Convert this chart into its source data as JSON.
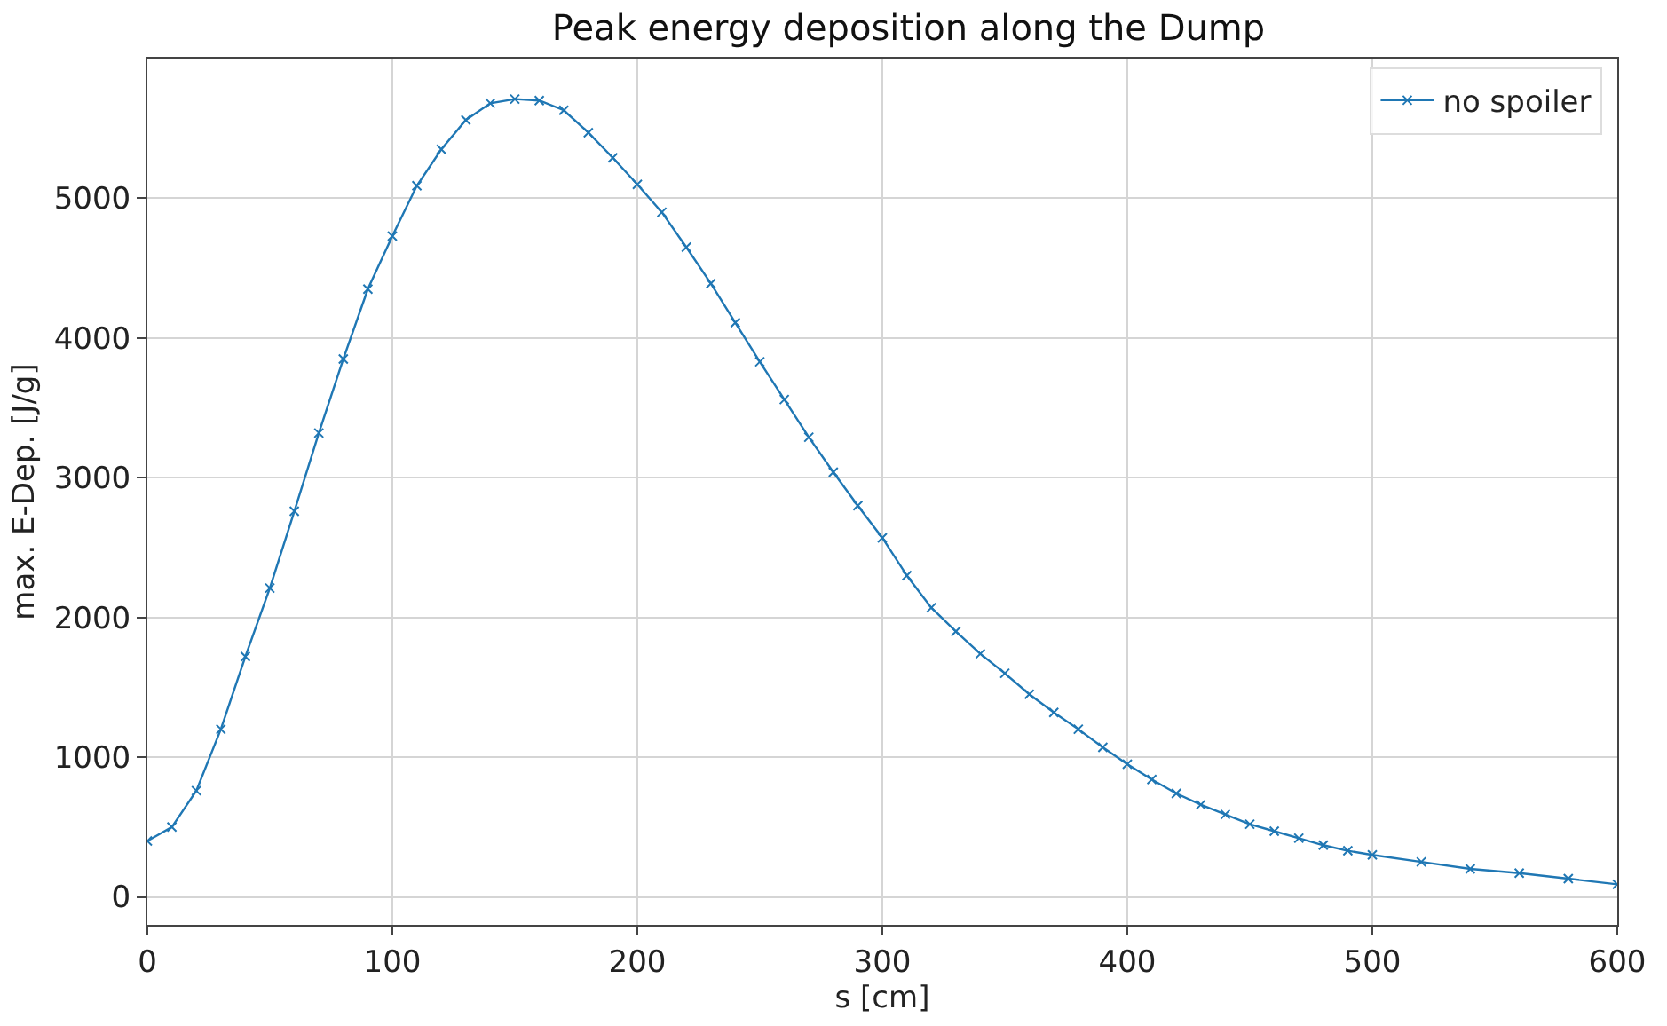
{
  "chart_data": {
    "type": "line",
    "title": "Peak energy deposition along the Dump",
    "xlabel": "s [cm]",
    "ylabel": "max. E-Dep. [J/g]",
    "x": [
      0,
      10,
      20,
      30,
      40,
      50,
      60,
      70,
      80,
      90,
      100,
      110,
      120,
      130,
      140,
      150,
      160,
      170,
      180,
      190,
      200,
      210,
      220,
      230,
      240,
      250,
      260,
      270,
      280,
      290,
      300,
      310,
      320,
      330,
      340,
      350,
      360,
      370,
      380,
      390,
      400,
      410,
      420,
      430,
      440,
      450,
      460,
      470,
      480,
      490,
      500,
      520,
      540,
      560,
      580,
      600
    ],
    "series": [
      {
        "name": "no spoiler",
        "color": "#1f77b4",
        "values": [
          400,
          500,
          760,
          1200,
          1720,
          2210,
          2760,
          3320,
          3850,
          4350,
          4730,
          5090,
          5350,
          5560,
          5680,
          5710,
          5700,
          5630,
          5470,
          5290,
          5100,
          4900,
          4650,
          4390,
          4110,
          3830,
          3560,
          3290,
          3040,
          2800,
          2570,
          2300,
          2070,
          1900,
          1740,
          1600,
          1450,
          1320,
          1200,
          1070,
          950,
          840,
          740,
          660,
          590,
          520,
          470,
          420,
          370,
          330,
          300,
          250,
          200,
          170,
          130,
          90
        ]
      }
    ],
    "xlim": [
      0,
      600
    ],
    "xticks": [
      0,
      100,
      200,
      300,
      400,
      500,
      600
    ],
    "ylim": [
      -200,
      6000
    ],
    "yticks": [
      0,
      1000,
      2000,
      3000,
      4000,
      5000
    ],
    "grid": true,
    "legend": "top right",
    "marker": "cross",
    "line_style": "solid"
  }
}
